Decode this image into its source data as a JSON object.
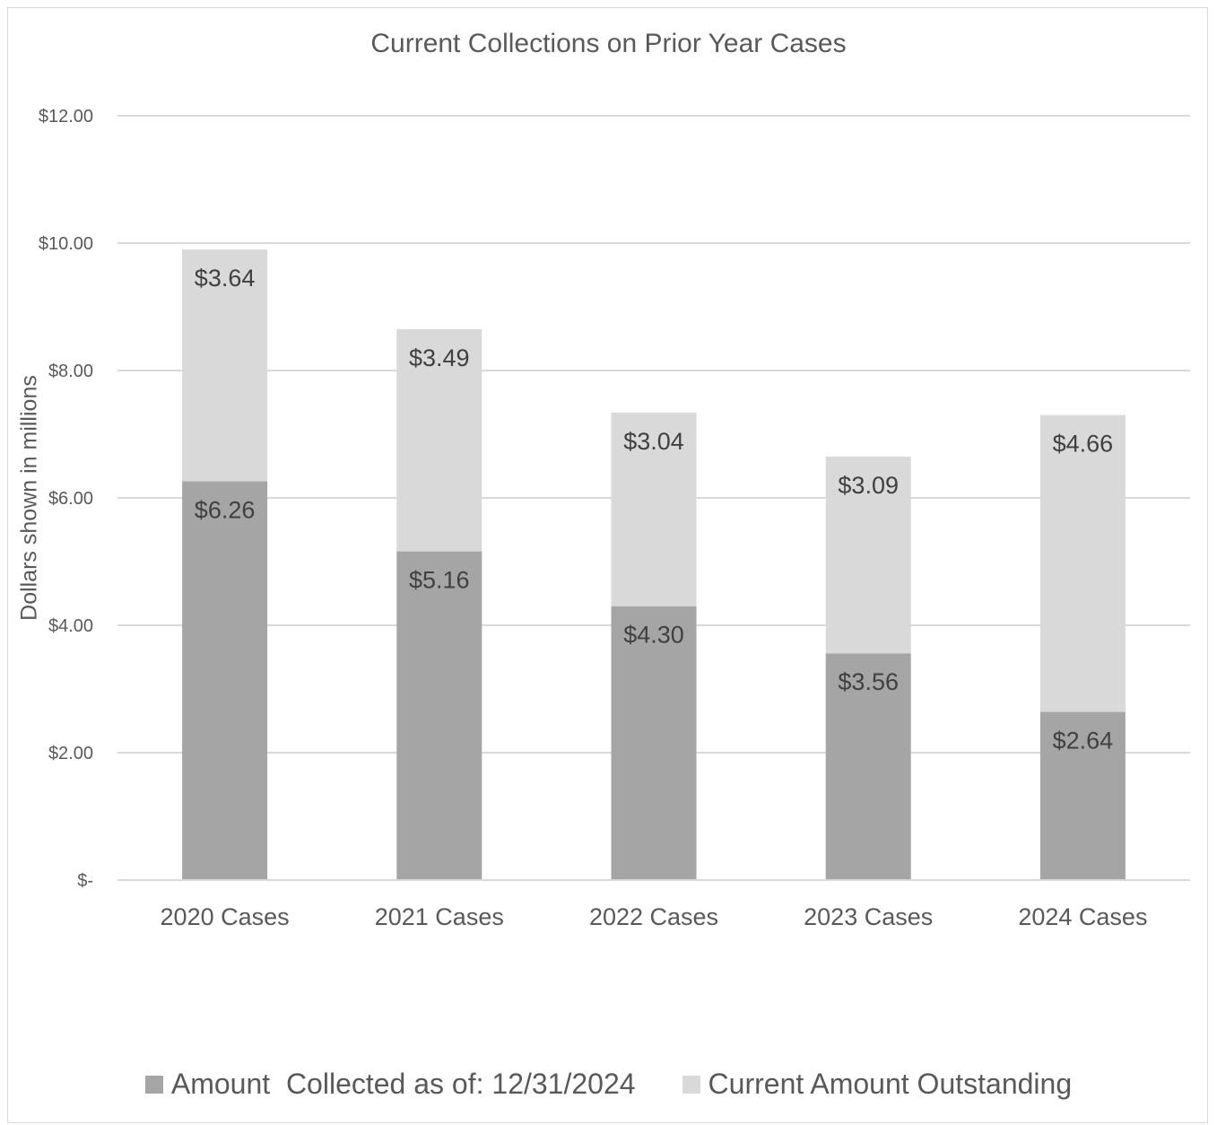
{
  "chart_data": {
    "type": "bar",
    "stacked": true,
    "title": "Current Collections on Prior Year Cases",
    "xlabel": "",
    "ylabel": "Dollars shown in millions",
    "ylim": [
      0,
      12
    ],
    "yticks": [
      0,
      2,
      4,
      6,
      8,
      10,
      12
    ],
    "ytick_labels": [
      "$-",
      "$2.00",
      "$4.00",
      "$6.00",
      "$8.00",
      "$10.00",
      "$12.00"
    ],
    "grid": true,
    "legend_position": "bottom",
    "categories": [
      "2020 Cases",
      "2021 Cases",
      "2022 Cases",
      "2023 Cases",
      "2024 Cases"
    ],
    "series": [
      {
        "name": "Amount  Collected as of: 12/31/2024",
        "color": "#a5a5a5",
        "values": [
          6.26,
          5.16,
          4.3,
          3.56,
          2.64
        ],
        "labels": [
          "$6.26",
          "$5.16",
          "$4.30",
          "$3.56",
          "$2.64"
        ]
      },
      {
        "name": "Current Amount Outstanding",
        "color": "#d9d9d9",
        "values": [
          3.64,
          3.49,
          3.04,
          3.09,
          4.66
        ],
        "labels": [
          "$3.64",
          "$3.49",
          "$3.04",
          "$3.09",
          "$4.66"
        ]
      }
    ]
  }
}
